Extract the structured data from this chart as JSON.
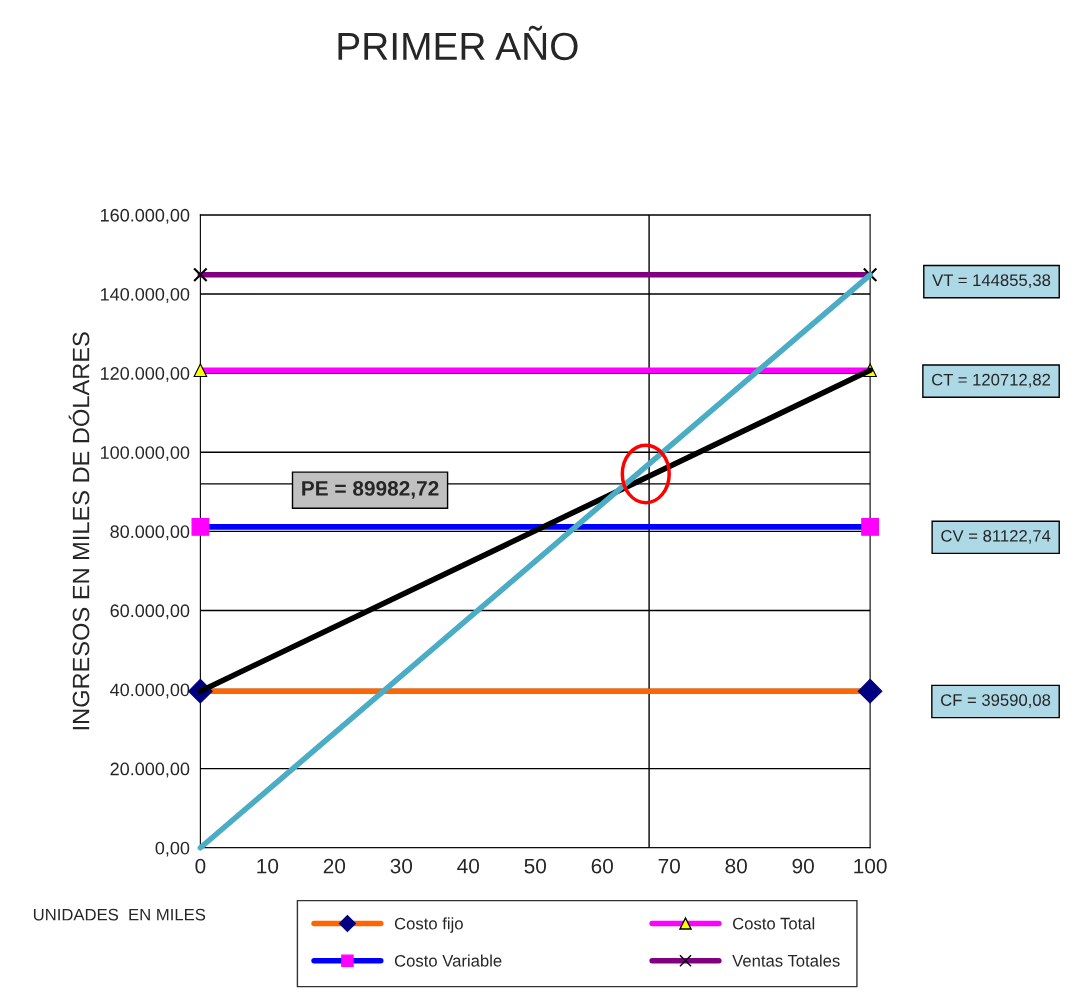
{
  "chart_data": {
    "type": "line",
    "title": "PRIMER AÑO",
    "ylabel": "INGRESOS EN MILES DE DÓLARES",
    "xlim": [
      0,
      100
    ],
    "xticks": [
      0,
      10,
      20,
      30,
      40,
      50,
      60,
      70,
      80,
      90,
      100
    ],
    "ylim": [
      0,
      160000
    ],
    "yticks": [
      {
        "value": 0,
        "label": "0,00"
      },
      {
        "value": 20000,
        "label": "20.000,00"
      },
      {
        "value": 40000,
        "label": "40.000,00"
      },
      {
        "value": 60000,
        "label": "60.000,00"
      },
      {
        "value": 80000,
        "label": "80.000,00"
      },
      {
        "value": 100000,
        "label": "100.000,00"
      },
      {
        "value": 120000,
        "label": "120.000,00"
      },
      {
        "value": 140000,
        "label": "140.000,00"
      },
      {
        "value": 160000,
        "label": "160.000,00"
      }
    ],
    "grid": "y",
    "legend": "bottom",
    "x": [
      0,
      100
    ],
    "series": [
      {
        "name": "Costo fijo",
        "color": "#ff6600",
        "marker": "diamond",
        "values": [
          39590.08,
          39590.08
        ]
      },
      {
        "name": "Costo Variable",
        "color": "#0000ff",
        "marker": "square",
        "values": [
          81122.74,
          81122.74
        ]
      },
      {
        "name": "Costo Total",
        "color": "#ff00ff",
        "marker": "triangle",
        "values": [
          120712.82,
          120712.82
        ]
      },
      {
        "name": "Ventas Totales",
        "color": "#800080",
        "marker": "cross",
        "values": [
          144855.38,
          144855.38
        ]
      },
      {
        "color": "#000000",
        "values": [
          39590.08,
          120712.82
        ]
      },
      {
        "color": "#4bacc6",
        "values": [
          0,
          144855.38
        ]
      }
    ],
    "ref_lines": [
      {
        "axis": "y",
        "value": 92000,
        "color": "#000000"
      },
      {
        "axis": "x",
        "value": 67,
        "color": "#000000"
      }
    ],
    "annotations": [
      "VT = 144855,38",
      "CT = 120712,82",
      "CV = 81122,74",
      "CF = 39590,08",
      "PE = 89982,72",
      "UNIDADES  EN MILES"
    ]
  }
}
